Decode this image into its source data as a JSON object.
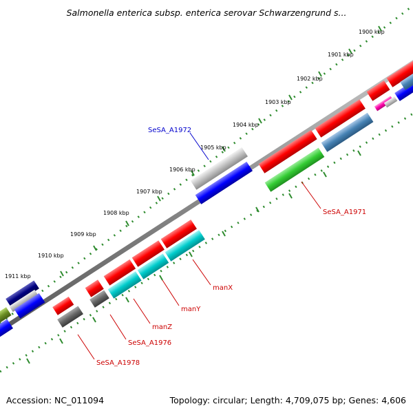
{
  "header": {
    "title": "Salmonella enterica subsp. enterica serovar Schwarzengrund s..."
  },
  "footer": {
    "accession": "Accession: NC_011094",
    "summary": "Topology: circular; Length: 4,709,075 bp; Genes: 4,606"
  },
  "ruler": {
    "ticks": [
      "1900 kbp",
      "1901 kbp",
      "1902 kbp",
      "1903 kbp",
      "1904 kbp",
      "1905 kbp",
      "1906 kbp",
      "1907 kbp",
      "1908 kbp",
      "1909 kbp",
      "1910 kbp",
      "1911 kbp"
    ]
  },
  "gene_labels": {
    "SeSA_A1972": "SeSA_A1972",
    "SeSA_A1971": "SeSA_A1971",
    "manX": "manX",
    "manY": "manY",
    "manZ": "manZ",
    "SeSA_A1976": "SeSA_A1976",
    "SeSA_A1978": "SeSA_A1978"
  },
  "colors": {
    "backbone": "#8a8a8a",
    "ruler_dots": "#2e8b2e",
    "label_blue": "#0000cc",
    "label_red": "#cc0000",
    "gene_red": "#ff0000",
    "gene_green": "#33cc33",
    "gene_cyan": "#00cccc",
    "gene_blue": "#0000ff",
    "gene_steel": "#4682b4",
    "gene_grey": "#c0c0c0",
    "gene_darkgrey": "#666666",
    "gene_navy": "#000080",
    "gene_olive": "#6b8e23",
    "gene_magenta": "#ff00aa"
  }
}
